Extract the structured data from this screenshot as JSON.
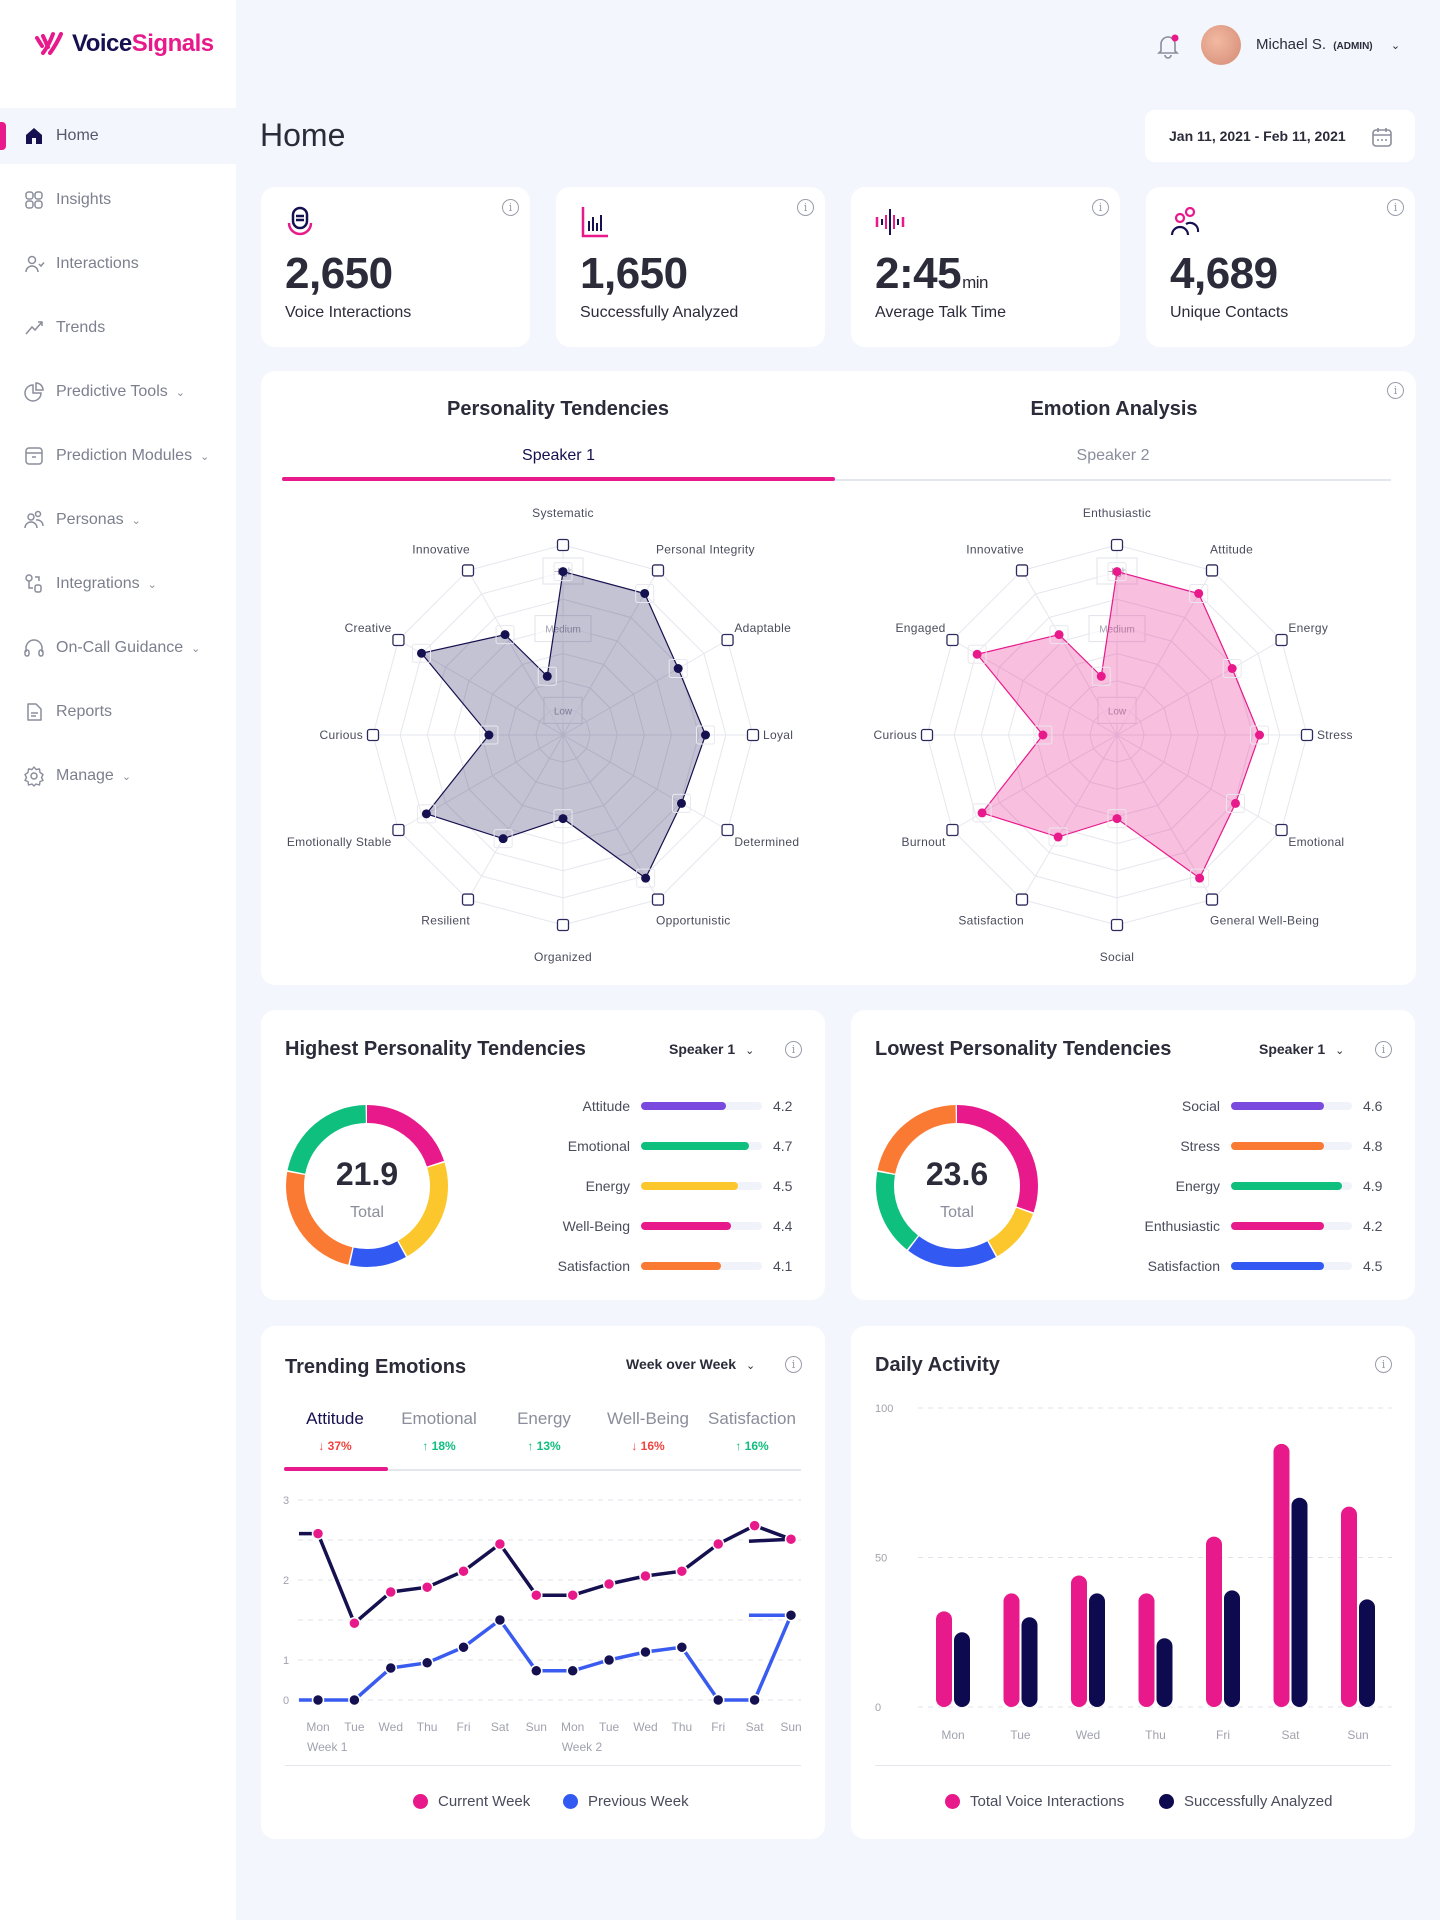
{
  "brand": {
    "name_part1": "Voice",
    "name_part2": "Signals"
  },
  "header": {
    "user_name": "Michael S.",
    "user_role": "(ADMIN)",
    "notification_dot": true
  },
  "sidebar": {
    "items": [
      {
        "label": "Home",
        "icon": "home-icon",
        "active": true,
        "has_children": false
      },
      {
        "label": "Insights",
        "icon": "grid-icon",
        "has_children": false
      },
      {
        "label": "Interactions",
        "icon": "user-heart-icon",
        "has_children": false
      },
      {
        "label": "Trends",
        "icon": "trend-icon",
        "has_children": false
      },
      {
        "label": "Predictive Tools",
        "icon": "pie-chart-icon",
        "has_children": true
      },
      {
        "label": "Prediction Modules",
        "icon": "archive-icon",
        "has_children": true
      },
      {
        "label": "Personas",
        "icon": "users-icon",
        "has_children": true
      },
      {
        "label": "Integrations",
        "icon": "integrations-icon",
        "has_children": true
      },
      {
        "label": "On-Call Guidance",
        "icon": "headphones-icon",
        "has_children": true
      },
      {
        "label": "Reports",
        "icon": "document-icon",
        "has_children": false
      },
      {
        "label": "Manage",
        "icon": "gear-icon",
        "has_children": true
      }
    ]
  },
  "page": {
    "title": "Home",
    "date_range": "Jan 11, 2021 - Feb 11, 2021"
  },
  "stats": [
    {
      "value": "2,650",
      "unit": "",
      "label": "Voice Interactions",
      "icon": "microphone-icon"
    },
    {
      "value": "1,650",
      "unit": "",
      "label": "Successfully Analyzed",
      "icon": "bar-chart-icon"
    },
    {
      "value": "2:45",
      "unit": "min",
      "label": "Average Talk Time",
      "icon": "soundwave-icon"
    },
    {
      "value": "4,689",
      "unit": "",
      "label": "Unique Contacts",
      "icon": "contacts-icon"
    }
  ],
  "radar_card": {
    "sections": [
      {
        "title": "Personality Tendencies",
        "tab": "Speaker 1",
        "active": true
      },
      {
        "title": "Emotion Analysis",
        "tab": "Speaker 2",
        "active": false
      }
    ],
    "levels": [
      "High",
      "Medium",
      "Low"
    ]
  },
  "highest": {
    "title": "Highest Personality Tendencies",
    "speaker": "Speaker 1",
    "total": "21.9",
    "total_label": "Total"
  },
  "lowest": {
    "title": "Lowest Personality Tendencies",
    "speaker": "Speaker 1",
    "total": "23.6",
    "total_label": "Total"
  },
  "trending": {
    "title": "Trending Emotions",
    "period": "Week over Week",
    "tabs": [
      {
        "label": "Attitude",
        "change": "37%",
        "direction": "down",
        "active": true
      },
      {
        "label": "Emotional",
        "change": "18%",
        "direction": "up"
      },
      {
        "label": "Energy",
        "change": "13%",
        "direction": "up"
      },
      {
        "label": "Well-Being",
        "change": "16%",
        "direction": "down"
      },
      {
        "label": "Satisfaction",
        "change": "16%",
        "direction": "up"
      }
    ]
  },
  "daily": {
    "title": "Daily Activity"
  },
  "colors": {
    "navy": "#15104f",
    "pink": "#e8198b",
    "green": "#0fbf7e",
    "yellow": "#fcc72c",
    "orange": "#fb7a33",
    "blue": "#3359f3",
    "purple": "#7a4ae0",
    "red": "#f0423e"
  },
  "chart_data": [
    {
      "id": "personality",
      "type": "radar",
      "scale": "Low-High (0-1)",
      "color": "#15104f",
      "points": [
        {
          "label": "Systematic",
          "value": 0.86
        },
        {
          "label": "Personal Integrity",
          "value": 0.86
        },
        {
          "label": "Adaptable",
          "value": 0.7
        },
        {
          "label": "Loyal",
          "value": 0.75
        },
        {
          "label": "Determined",
          "value": 0.72
        },
        {
          "label": "Opportunistic",
          "value": 0.87
        },
        {
          "label": "Organized",
          "value": 0.44
        },
        {
          "label": "Resilient",
          "value": 0.63
        },
        {
          "label": "Emotionally Stable",
          "value": 0.83
        },
        {
          "label": "Curious",
          "value": 0.39
        },
        {
          "label": "Creative",
          "value": 0.86
        },
        {
          "label": "Innovative",
          "value": 0.61
        },
        {
          "label": "",
          "value": 0.32
        }
      ]
    },
    {
      "id": "emotion",
      "type": "radar",
      "scale": "Low-High (0-1)",
      "color": "#e8198b",
      "points": [
        {
          "label": "Enthusiastic",
          "value": 0.86
        },
        {
          "label": "Attitude",
          "value": 0.86
        },
        {
          "label": "Energy",
          "value": 0.7
        },
        {
          "label": "Stress",
          "value": 0.75
        },
        {
          "label": "Emotional",
          "value": 0.72
        },
        {
          "label": "General Well-Being",
          "value": 0.87
        },
        {
          "label": "Social",
          "value": 0.44
        },
        {
          "label": "Satisfaction",
          "value": 0.62
        },
        {
          "label": "Burnout",
          "value": 0.82
        },
        {
          "label": "Curious",
          "value": 0.39
        },
        {
          "label": "Engaged",
          "value": 0.85
        },
        {
          "label": "Innovative",
          "value": 0.61
        },
        {
          "label": "",
          "value": 0.32
        }
      ]
    },
    {
      "id": "highest",
      "type": "pie",
      "donut_segments": [
        {
          "color": "#e8198b",
          "percent": 20.3
        },
        {
          "color": "#fcc72c",
          "percent": 21.7
        },
        {
          "color": "#3359f3",
          "percent": 11.7
        },
        {
          "color": "#fb7a33",
          "percent": 24.4
        },
        {
          "color": "#0fbf7e",
          "percent": 21.9
        }
      ],
      "bars": [
        {
          "label": "Attitude",
          "value": "4.2",
          "fill": 0.7,
          "color": "#7a4ae0"
        },
        {
          "label": "Emotional",
          "value": "4.7",
          "fill": 0.89,
          "color": "#0fbf7e"
        },
        {
          "label": "Energy",
          "value": "4.5",
          "fill": 0.8,
          "color": "#fcc72c"
        },
        {
          "label": "Well-Being",
          "value": "4.4",
          "fill": 0.74,
          "color": "#e8198b"
        },
        {
          "label": "Satisfaction",
          "value": "4.1",
          "fill": 0.66,
          "color": "#fb7a33"
        }
      ]
    },
    {
      "id": "lowest",
      "type": "pie",
      "donut_segments": [
        {
          "color": "#e8198b",
          "percent": 30.6
        },
        {
          "color": "#fcc72c",
          "percent": 11.4
        },
        {
          "color": "#3359f3",
          "percent": 18.6
        },
        {
          "color": "#0fbf7e",
          "percent": 17.5
        },
        {
          "color": "#fb7a33",
          "percent": 21.9
        }
      ],
      "bars": [
        {
          "label": "Social",
          "value": "4.6",
          "fill": 0.77,
          "color": "#7a4ae0"
        },
        {
          "label": "Stress",
          "value": "4.8",
          "fill": 0.77,
          "color": "#fb7a33"
        },
        {
          "label": "Energy",
          "value": "4.9",
          "fill": 0.92,
          "color": "#0fbf7e"
        },
        {
          "label": "Enthusiastic",
          "value": "4.2",
          "fill": 0.77,
          "color": "#e8198b"
        },
        {
          "label": "Satisfaction",
          "value": "4.5",
          "fill": 0.77,
          "color": "#3359f3"
        }
      ]
    },
    {
      "id": "trending",
      "type": "line",
      "x": [
        "Mon",
        "Tue",
        "Wed",
        "Thu",
        "Fri",
        "Sat",
        "Sun",
        "Mon",
        "Tue",
        "Wed",
        "Thu",
        "Fri",
        "Sat",
        "Sun"
      ],
      "x_group_labels": [
        {
          "label": "Week 1",
          "at": 0
        },
        {
          "label": "Week 2",
          "at": 7
        }
      ],
      "yticks": [
        "3",
        "2",
        "1",
        "0"
      ],
      "ylim": [
        0,
        3
      ],
      "grid": true,
      "legend": "bottom",
      "series": [
        {
          "name": "Current Week",
          "color": "#e8198b",
          "line_color": "#15104f",
          "values": [
            2.58,
            1.46,
            1.85,
            1.91,
            2.11,
            2.45,
            1.81,
            1.81,
            1.95,
            2.05,
            2.11,
            2.45,
            2.68,
            2.51
          ]
        },
        {
          "name": "Previous Week",
          "color": "#3359f3",
          "line_color": "#3a5bf0",
          "values": [
            0,
            0,
            0.8,
            0.93,
            1.16,
            1.5,
            0.73,
            0.73,
            1.0,
            1.1,
            1.16,
            0,
            0,
            1.56
          ]
        }
      ]
    },
    {
      "id": "daily",
      "type": "bar",
      "categories": [
        "Mon",
        "Tue",
        "Wed",
        "Thu",
        "Fri",
        "Sat",
        "Sun"
      ],
      "yticks": [
        "100",
        "50",
        "0"
      ],
      "ylim": [
        0,
        100
      ],
      "grid": true,
      "legend": "bottom",
      "series": [
        {
          "name": "Total Voice Interactions",
          "color": "#e8198b",
          "values": [
            32,
            38,
            44,
            38,
            57,
            88,
            67
          ]
        },
        {
          "name": "Successfully Analyzed",
          "color": "#0d0a4f",
          "values": [
            25,
            30,
            38,
            23,
            39,
            70,
            36
          ]
        }
      ]
    }
  ]
}
